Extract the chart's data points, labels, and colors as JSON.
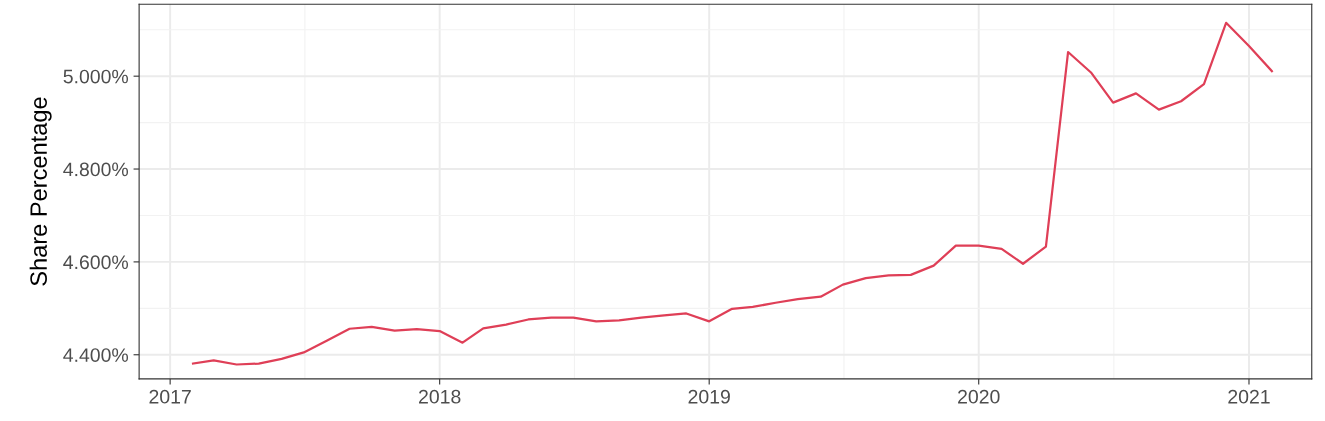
{
  "chart_data": {
    "type": "line",
    "ylabel": "Share Percentage",
    "x": [
      "2017-02",
      "2017-03",
      "2017-04",
      "2017-05",
      "2017-06",
      "2017-07",
      "2017-08",
      "2017-09",
      "2017-10",
      "2017-11",
      "2017-12",
      "2018-01",
      "2018-02",
      "2018-03",
      "2018-04",
      "2018-05",
      "2018-06",
      "2018-07",
      "2018-08",
      "2018-09",
      "2018-10",
      "2018-11",
      "2018-12",
      "2019-01",
      "2019-02",
      "2019-03",
      "2019-04",
      "2019-05",
      "2019-06",
      "2019-07",
      "2019-08",
      "2019-09",
      "2019-10",
      "2019-11",
      "2019-12",
      "2020-01",
      "2020-02",
      "2020-03",
      "2020-04",
      "2020-05",
      "2020-06",
      "2020-07",
      "2020-08",
      "2020-09",
      "2020-10",
      "2020-11",
      "2020-12",
      "2021-01",
      "2021-02"
    ],
    "series": [
      {
        "color": "#df3f57",
        "values": [
          4.381,
          4.388,
          4.379,
          4.381,
          4.391,
          4.405,
          4.43,
          4.456,
          4.46,
          4.452,
          4.455,
          4.451,
          4.426,
          4.457,
          4.465,
          4.476,
          4.48,
          4.48,
          4.472,
          4.474,
          4.48,
          4.485,
          4.489,
          4.472,
          4.499,
          4.503,
          4.512,
          4.52,
          4.525,
          4.551,
          4.565,
          4.571,
          4.572,
          4.592,
          4.635,
          4.635,
          4.628,
          4.596,
          4.633,
          5.052,
          5.008,
          4.943,
          4.963,
          4.928,
          4.946,
          4.983,
          5.115,
          5.065,
          5.011
        ]
      }
    ],
    "xlim": [
      "2016-11-20",
      "2021-03-27"
    ],
    "xticks": [
      {
        "value": "2017-01-01",
        "label": "2017"
      },
      {
        "value": "2018-01-01",
        "label": "2018"
      },
      {
        "value": "2019-01-01",
        "label": "2019"
      },
      {
        "value": "2020-01-01",
        "label": "2020"
      },
      {
        "value": "2021-01-01",
        "label": "2021"
      }
    ],
    "ylim": [
      4.348,
      5.155
    ],
    "yticks": [
      {
        "value": 4.4,
        "label": "4.400%"
      },
      {
        "value": 4.6,
        "label": "4.600%"
      },
      {
        "value": 4.8,
        "label": "4.800%"
      },
      {
        "value": 5.0,
        "label": "5.000%"
      }
    ],
    "grid": true,
    "line_style": "solid",
    "marker": "none"
  }
}
